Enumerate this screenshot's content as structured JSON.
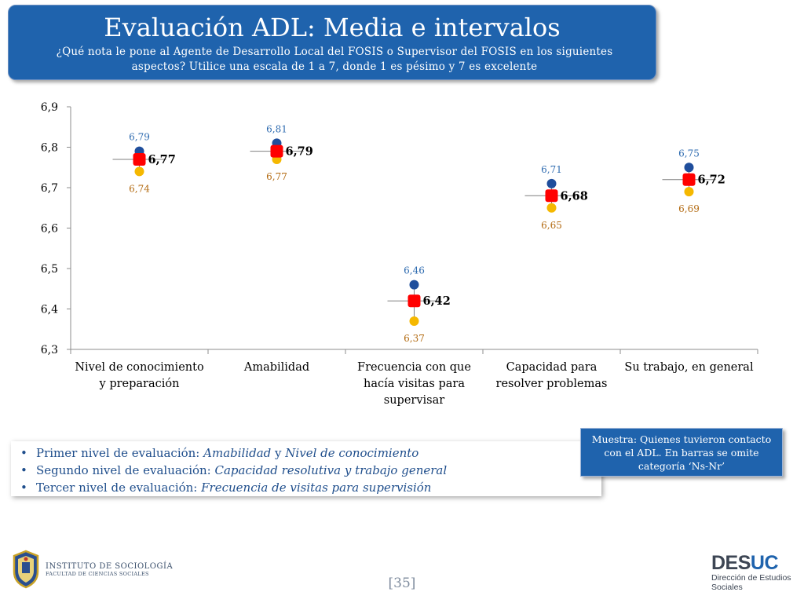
{
  "header": {
    "title": "Evaluación ADL: Media e intervalos",
    "subtitle": "¿Qué nota le pone al Agente de Desarrollo Local del FOSIS o Supervisor del FOSIS en los siguientes aspectos? Utilice una escala de 1 a 7, donde 1 es pésimo y 7 es excelente"
  },
  "chart_data": {
    "type": "scatter",
    "title": "",
    "xlabel": "",
    "ylabel": "",
    "ylim": [
      6.3,
      6.9
    ],
    "yticks": [
      "6,3",
      "6,4",
      "6,5",
      "6,6",
      "6,7",
      "6,8",
      "6,9"
    ],
    "categories": [
      [
        "Nivel de conocimiento",
        "y preparación"
      ],
      [
        "Amabilidad"
      ],
      [
        "Frecuencia con que",
        "hacía visitas para",
        "supervisar"
      ],
      [
        "Capacidad para",
        "resolver problemas"
      ],
      [
        "Su trabajo, en general"
      ]
    ],
    "series": [
      {
        "role": "upper",
        "color": "#1f4e9c",
        "label_color": "#2e6bb0",
        "values": [
          6.79,
          6.81,
          6.46,
          6.71,
          6.75
        ],
        "labels": [
          "6,79",
          "6,81",
          "6,46",
          "6,71",
          "6,75"
        ]
      },
      {
        "role": "mean",
        "color": "#ff0000",
        "label_color": "#000000",
        "values": [
          6.77,
          6.79,
          6.42,
          6.68,
          6.72
        ],
        "labels": [
          "6,77",
          "6,79",
          "6,42",
          "6,68",
          "6,72"
        ]
      },
      {
        "role": "lower",
        "color": "#f5b800",
        "label_color": "#b36b12",
        "values": [
          6.74,
          6.77,
          6.37,
          6.65,
          6.69
        ],
        "labels": [
          "6,74",
          "6,77",
          "6,37",
          "6,65",
          "6,69"
        ]
      }
    ],
    "grid": false,
    "legend": "none"
  },
  "bullets": {
    "items": [
      {
        "prefix": "Primer nivel de evaluación: ",
        "em1": "Amabilidad",
        "mid": " y ",
        "em2": "Nivel de conocimiento"
      },
      {
        "prefix": "Segundo nivel de evaluación: ",
        "em1": "Capacidad resolutiva y trabajo general",
        "mid": "",
        "em2": ""
      },
      {
        "prefix": "Tercer nivel de evaluación: ",
        "em1": "Frecuencia de visitas para supervisión",
        "mid": "",
        "em2": ""
      }
    ]
  },
  "note": "Muestra: Quienes tuvieron contacto con el ADL. En barras se omite categoría ‘Ns-Nr’",
  "footer": {
    "institute_line1": "INSTITUTO DE SOCIOLOGÍA",
    "institute_line2": "FACULTAD DE CIENCIAS SOCIALES",
    "page_number": "[35]",
    "brand_main": "DES",
    "brand_accent": "UC",
    "brand_sub1": "Dirección de Estudios",
    "brand_sub2": "Sociales"
  },
  "icons": {
    "crest": "university-crest-icon"
  }
}
